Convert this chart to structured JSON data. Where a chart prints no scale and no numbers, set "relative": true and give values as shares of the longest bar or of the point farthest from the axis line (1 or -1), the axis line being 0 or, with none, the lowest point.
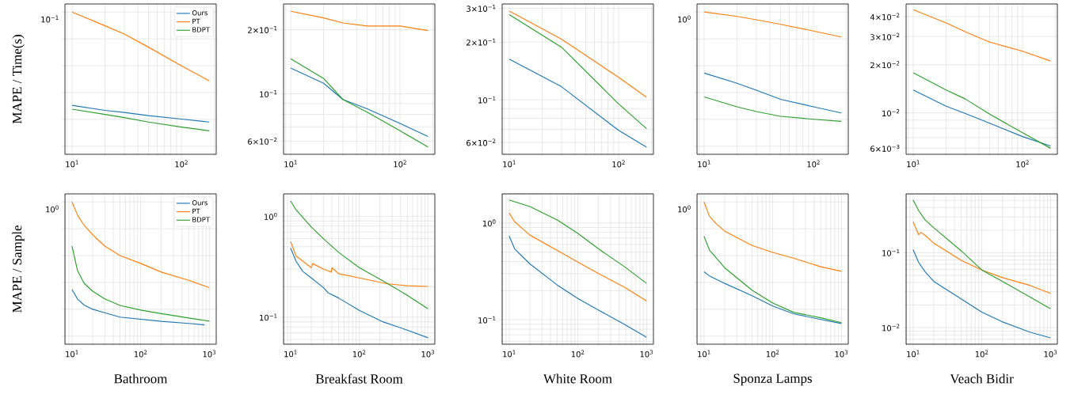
{
  "chart_data": [
    {
      "type": "line",
      "ylabel": "MAPE / Time(s)",
      "log": "x",
      "grid": true,
      "legend": "top right",
      "relative": true,
      "annotations": [
        "10$^{−1}$"
      ],
      "xlim": [
        8.6,
        208
      ],
      "xticks": [
        {
          "value": 10,
          "label": "10$^{1}$"
        },
        {
          "value": 100,
          "label": "10$^{2}$"
        }
      ],
      "series": [
        {
          "name": "Ours",
          "color": "#1f77b4",
          "x": [
            10,
            20,
            30,
            50,
            100,
            180
          ],
          "values": [
            0.305,
            0.267,
            0.252,
            0.228,
            0.202,
            0.18
          ]
        },
        {
          "name": "PT",
          "color": "#ff7f0e",
          "x": [
            10,
            20,
            30,
            50,
            100,
            180
          ],
          "values": [
            1,
            0.897,
            0.836,
            0.738,
            0.599,
            0.487
          ]
        },
        {
          "name": "BDPT",
          "color": "#2ca02c",
          "x": [
            10,
            20,
            30,
            50,
            100,
            180
          ],
          "values": [
            0.276,
            0.237,
            0.213,
            0.18,
            0.143,
            0.115
          ]
        }
      ]
    },
    {
      "type": "line",
      "log": "xy",
      "grid": true,
      "xlim": [
        8.6,
        208
      ],
      "xticks": [
        {
          "value": 10,
          "label": "10$^{1}$"
        },
        {
          "value": 100,
          "label": "10$^{2}$"
        }
      ],
      "ylim": [
        0.052,
        0.264
      ],
      "yticks": [
        {
          "value": 0.06,
          "label": "6×10$^{−2}$"
        },
        {
          "value": 0.1,
          "label": "10$^{−1}$"
        },
        {
          "value": 0.2,
          "label": "2×10$^{−1}$"
        }
      ],
      "series": [
        {
          "color": "#1f77b4",
          "x": [
            10,
            20,
            30,
            50,
            100,
            180
          ],
          "values": [
            0.132,
            0.112,
            0.094,
            0.085,
            0.0726,
            0.063
          ]
        },
        {
          "color": "#ff7f0e",
          "x": [
            10,
            20,
            30,
            50,
            100,
            180
          ],
          "values": [
            0.244,
            0.227,
            0.215,
            0.208,
            0.208,
            0.198
          ]
        },
        {
          "color": "#2ca02c",
          "x": [
            10,
            20,
            30,
            50,
            100,
            180
          ],
          "values": [
            0.146,
            0.118,
            0.094,
            0.082,
            0.067,
            0.0563
          ]
        }
      ]
    },
    {
      "type": "line",
      "log": "xy",
      "grid": true,
      "xlim": [
        8.6,
        208
      ],
      "xticks": [
        {
          "value": 10,
          "label": "10$^{1}$"
        },
        {
          "value": 100,
          "label": "10$^{2}$"
        }
      ],
      "ylim": [
        0.052,
        0.316
      ],
      "yticks": [
        {
          "value": 0.06,
          "label": "6×10$^{−2}$"
        },
        {
          "value": 0.1,
          "label": "10$^{−1}$"
        },
        {
          "value": 0.2,
          "label": "2×10$^{−1}$"
        },
        {
          "value": 0.3,
          "label": "3×10$^{−1}$"
        }
      ],
      "series": [
        {
          "color": "#1f77b4",
          "x": [
            10,
            30,
            100,
            180
          ],
          "values": [
            0.163,
            0.117,
            0.0693,
            0.0566
          ]
        },
        {
          "color": "#ff7f0e",
          "x": [
            10,
            30,
            100,
            180
          ],
          "values": [
            0.29,
            0.207,
            0.131,
            0.103
          ]
        },
        {
          "color": "#2ca02c",
          "x": [
            10,
            30,
            100,
            180
          ],
          "values": [
            0.278,
            0.188,
            0.0951,
            0.0707
          ]
        }
      ]
    },
    {
      "type": "line",
      "log": "x",
      "grid": true,
      "xlim": [
        8.6,
        208
      ],
      "xticks": [
        {
          "value": 10,
          "label": "10$^{1}$"
        },
        {
          "value": 100,
          "label": "10$^{2}$"
        }
      ],
      "relative": true,
      "annotations": [
        "10$^{0}$"
      ],
      "series": [
        {
          "color": "#1f77b4",
          "x": [
            10,
            20,
            30,
            50,
            100,
            180
          ],
          "values": [
            0.545,
            0.469,
            0.417,
            0.35,
            0.294,
            0.248
          ]
        },
        {
          "color": "#ff7f0e",
          "x": [
            10,
            20,
            30,
            50,
            100,
            180
          ],
          "values": [
            1,
            0.967,
            0.942,
            0.908,
            0.858,
            0.814
          ]
        },
        {
          "color": "#2ca02c",
          "x": [
            10,
            20,
            30,
            50,
            100,
            180
          ],
          "values": [
            0.367,
            0.294,
            0.258,
            0.223,
            0.201,
            0.185
          ]
        }
      ]
    },
    {
      "type": "line",
      "log": "xy",
      "grid": true,
      "xlim": [
        8.6,
        208
      ],
      "xticks": [
        {
          "value": 10,
          "label": "10$^{1}$"
        },
        {
          "value": 100,
          "label": "10$^{2}$"
        }
      ],
      "ylim": [
        0.0055,
        0.048
      ],
      "yticks": [
        {
          "value": 0.006,
          "label": "6×10$^{−3}$"
        },
        {
          "value": 0.01,
          "label": "10$^{−2}$"
        },
        {
          "value": 0.02,
          "label": "2×10$^{−2}$"
        },
        {
          "value": 0.03,
          "label": "3×10$^{−2}$"
        },
        {
          "value": 0.04,
          "label": "4×10$^{−2}$"
        }
      ],
      "series": [
        {
          "color": "#1f77b4",
          "x": [
            10,
            20,
            30,
            50,
            100,
            180
          ],
          "values": [
            0.0139,
            0.011,
            0.0099,
            0.0086,
            0.0071,
            0.0062
          ]
        },
        {
          "color": "#ff7f0e",
          "x": [
            10,
            20,
            30,
            50,
            100,
            180
          ],
          "values": [
            0.0442,
            0.0365,
            0.0321,
            0.0277,
            0.0243,
            0.0211
          ]
        },
        {
          "color": "#2ca02c",
          "x": [
            10,
            20,
            30,
            50,
            100,
            180
          ],
          "values": [
            0.0178,
            0.0139,
            0.0122,
            0.0098,
            0.0075,
            0.006
          ]
        }
      ]
    },
    {
      "type": "line",
      "ylabel": "MAPE / Sample",
      "xlabel": "Bathroom",
      "log": "x",
      "grid": true,
      "legend": "top right",
      "xlim": [
        7.9,
        1260
      ],
      "xticks": [
        {
          "value": 10,
          "label": "10$^{1}$"
        },
        {
          "value": 100,
          "label": "10$^{2}$"
        },
        {
          "value": 1000,
          "label": "10$^{3}$"
        }
      ],
      "relative": true,
      "annotations": [
        "10$^{0}$"
      ],
      "series": [
        {
          "name": "Ours",
          "color": "#1f77b4",
          "x": [
            10,
            12,
            15,
            20,
            30,
            50,
            100,
            200,
            500,
            850
          ],
          "values": [
            0.348,
            0.277,
            0.232,
            0.2,
            0.174,
            0.142,
            0.126,
            0.11,
            0.0948,
            0.0839
          ]
        },
        {
          "name": "PT",
          "color": "#ff7f0e",
          "x": [
            10,
            12,
            15,
            20,
            30,
            50,
            100,
            200,
            500,
            1000
          ],
          "values": [
            1,
            0.903,
            0.826,
            0.755,
            0.671,
            0.6,
            0.542,
            0.477,
            0.416,
            0.361
          ]
        },
        {
          "name": "BDPT",
          "color": "#2ca02c",
          "x": [
            10,
            12,
            15,
            20,
            30,
            50,
            100,
            200,
            500,
            1000
          ],
          "values": [
            0.671,
            0.49,
            0.394,
            0.335,
            0.277,
            0.229,
            0.194,
            0.168,
            0.135,
            0.112
          ]
        }
      ]
    },
    {
      "type": "line",
      "xlabel": "Breakfast Room",
      "log": "xy",
      "grid": true,
      "xlim": [
        7.9,
        1260
      ],
      "xticks": [
        {
          "value": 10,
          "label": "10$^{1}$"
        },
        {
          "value": 100,
          "label": "10$^{2}$"
        },
        {
          "value": 1000,
          "label": "10$^{3}$"
        }
      ],
      "ylim": [
        0.054,
        1.67
      ],
      "yticks": [
        {
          "value": 0.1,
          "label": "10$^{−1}$"
        },
        {
          "value": 1,
          "label": "10$^{0}$"
        }
      ],
      "series": [
        {
          "color": "#1f77b4",
          "x": [
            10,
            12,
            15,
            20,
            30,
            35,
            50,
            100,
            224,
            500,
            1000
          ],
          "values": [
            0.485,
            0.36,
            0.285,
            0.245,
            0.197,
            0.175,
            0.155,
            0.117,
            0.0897,
            0.0745,
            0.0625
          ]
        },
        {
          "color": "#ff7f0e",
          "x": [
            10,
            12,
            15,
            20,
            21,
            30,
            39,
            40,
            50,
            100,
            250,
            500,
            1000
          ],
          "values": [
            0.564,
            0.405,
            0.36,
            0.31,
            0.34,
            0.3,
            0.279,
            0.31,
            0.27,
            0.245,
            0.215,
            0.205,
            0.202
          ]
        },
        {
          "color": "#2ca02c",
          "x": [
            10,
            12,
            20,
            30,
            50,
            100,
            224,
            500,
            1000
          ],
          "values": [
            1.42,
            1.16,
            0.785,
            0.6,
            0.44,
            0.31,
            0.228,
            0.165,
            0.121
          ]
        }
      ]
    },
    {
      "type": "line",
      "xlabel": "White Room",
      "log": "xy",
      "grid": true,
      "xlim": [
        7.9,
        1260
      ],
      "xticks": [
        {
          "value": 10,
          "label": "10$^{1}$"
        },
        {
          "value": 100,
          "label": "10$^{2}$"
        },
        {
          "value": 1000,
          "label": "10$^{3}$"
        }
      ],
      "ylim": [
        0.056,
        2.0
      ],
      "yticks": [
        {
          "value": 0.1,
          "label": "10$^{−1}$"
        },
        {
          "value": 1,
          "label": "10$^{0}$"
        }
      ],
      "series": [
        {
          "color": "#1f77b4",
          "x": [
            10,
            12,
            20,
            50,
            100,
            200,
            500,
            1000
          ],
          "values": [
            0.734,
            0.54,
            0.378,
            0.229,
            0.166,
            0.126,
            0.088,
            0.0659
          ]
        },
        {
          "color": "#ff7f0e",
          "x": [
            10,
            12,
            20,
            50,
            100,
            200,
            500,
            1000
          ],
          "values": [
            1.27,
            1.03,
            0.75,
            0.52,
            0.395,
            0.3,
            0.213,
            0.156
          ]
        },
        {
          "color": "#2ca02c",
          "x": [
            10,
            20,
            50,
            100,
            200,
            500,
            1000
          ],
          "values": [
            1.73,
            1.48,
            1.075,
            0.78,
            0.54,
            0.345,
            0.238
          ]
        }
      ]
    },
    {
      "type": "line",
      "xlabel": "Sponza Lamps",
      "log": "x",
      "grid": true,
      "xlim": [
        7.9,
        1260
      ],
      "xticks": [
        {
          "value": 10,
          "label": "10$^{1}$"
        },
        {
          "value": 100,
          "label": "10$^{2}$"
        },
        {
          "value": 1000,
          "label": "10$^{3}$"
        }
      ],
      "relative": true,
      "annotations": [
        "10$^{0}$"
      ],
      "series": [
        {
          "color": "#1f77b4",
          "x": [
            10,
            12,
            20,
            50,
            100,
            200,
            500,
            1000
          ],
          "values": [
            0.479,
            0.449,
            0.393,
            0.301,
            0.224,
            0.167,
            0.124,
            0.094
          ]
        },
        {
          "color": "#ff7f0e",
          "x": [
            10,
            12,
            15,
            20,
            50,
            100,
            200,
            500,
            1000
          ],
          "values": [
            1,
            0.893,
            0.838,
            0.782,
            0.675,
            0.624,
            0.581,
            0.517,
            0.483
          ]
        },
        {
          "color": "#2ca02c",
          "x": [
            10,
            12,
            20,
            50,
            100,
            200,
            500,
            1000
          ],
          "values": [
            0.744,
            0.641,
            0.509,
            0.342,
            0.247,
            0.178,
            0.137,
            0.101
          ]
        }
      ]
    },
    {
      "type": "line",
      "xlabel": "Veach Bidir",
      "log": "xy",
      "grid": true,
      "xlim": [
        7.9,
        1260
      ],
      "xticks": [
        {
          "value": 10,
          "label": "10$^{1}$"
        },
        {
          "value": 100,
          "label": "10$^{2}$"
        },
        {
          "value": 1000,
          "label": "10$^{3}$"
        }
      ],
      "ylim": [
        0.006,
        0.61
      ],
      "yticks": [
        {
          "value": 0.01,
          "label": "10$^{−2}$"
        },
        {
          "value": 0.1,
          "label": "10$^{−1}$"
        }
      ],
      "series": [
        {
          "color": "#1f77b4",
          "x": [
            10,
            12,
            15,
            20,
            50,
            100,
            200,
            500,
            1000
          ],
          "values": [
            0.11,
            0.0744,
            0.0554,
            0.0413,
            0.0242,
            0.0161,
            0.0119,
            0.0087,
            0.0073
          ]
        },
        {
          "color": "#ff7f0e",
          "x": [
            10,
            12,
            13,
            15,
            20,
            50,
            100,
            200,
            500,
            1000
          ],
          "values": [
            0.257,
            0.174,
            0.187,
            0.17,
            0.134,
            0.079,
            0.0588,
            0.0464,
            0.0366,
            0.0286
          ]
        },
        {
          "color": "#2ca02c",
          "x": [
            10,
            12,
            15,
            20,
            50,
            100,
            200,
            500,
            1000
          ],
          "values": [
            0.505,
            0.366,
            0.273,
            0.215,
            0.106,
            0.0588,
            0.0413,
            0.0257,
            0.0178
          ]
        }
      ]
    }
  ]
}
